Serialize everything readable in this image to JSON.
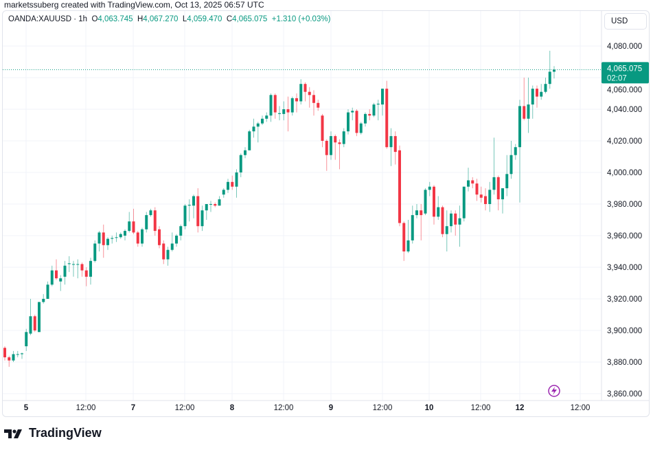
{
  "attribution": "marketssuberg created with TradingView.com, Oct 13, 2025 06:57 UTC",
  "legend": {
    "symbol": "OANDA:XAUUSD · 1h",
    "o_label": "O",
    "o": "4,063.745",
    "h_label": "H",
    "h": "4,067.270",
    "l_label": "L",
    "l": "4,059.470",
    "c_label": "C",
    "c": "4,065.075",
    "change": "+1.310 (+0.03%)"
  },
  "currency": "USD",
  "current_price": {
    "value": "4,065.075",
    "countdown": "02:07"
  },
  "brand": "TradingView",
  "colors": {
    "up": "#089981",
    "down": "#F23645",
    "grid": "#f0f3fa",
    "accent": "#9c27b0"
  },
  "chart_data": {
    "type": "candlestick",
    "title": "OANDA:XAUUSD · 1h",
    "ylim": [
      3850,
      4090
    ],
    "y_ticks": [
      "4,080.000",
      "4,060.000",
      "4,040.000",
      "4,020.000",
      "4,000.000",
      "3,980.000",
      "3,960.000",
      "3,940.000",
      "3,920.000",
      "3,900.000",
      "3,880.000",
      "3,860.000"
    ],
    "y_tick_values": [
      4080,
      4060,
      4040,
      4020,
      4000,
      3980,
      3960,
      3940,
      3920,
      3900,
      3880,
      3860
    ],
    "x_ticks": [
      "5",
      "12:00",
      "7",
      "12:00",
      "8",
      "12:00",
      "9",
      "12:00",
      "10",
      "12:00",
      "12",
      "12:00"
    ],
    "grid": true,
    "last_price": 4065.075,
    "ohlc": [
      [
        3889,
        3890,
        3881,
        3883
      ],
      [
        3883,
        3884,
        3877,
        3881
      ],
      [
        3881,
        3887,
        3880,
        3885
      ],
      [
        3885,
        3887,
        3883,
        3885
      ],
      [
        3885,
        3886,
        3882,
        3885.5
      ],
      [
        3890,
        3901,
        3887,
        3899
      ],
      [
        3898,
        3920,
        3897,
        3909
      ],
      [
        3909,
        3910,
        3899,
        3900
      ],
      [
        3899,
        3918,
        3899,
        3918
      ],
      [
        3918,
        3923,
        3917,
        3920
      ],
      [
        3920,
        3931,
        3920,
        3929
      ],
      [
        3929,
        3941,
        3928,
        3938
      ],
      [
        3938,
        3945,
        3932,
        3933
      ],
      [
        3931,
        3935,
        3925,
        3933
      ],
      [
        3934,
        3944,
        3929,
        3941
      ],
      [
        3942,
        3947,
        3937,
        3942.5
      ],
      [
        3942,
        3944,
        3934,
        3942
      ],
      [
        3942,
        3945,
        3933,
        3942
      ],
      [
        3942,
        3943,
        3934,
        3938
      ],
      [
        3938,
        3940,
        3928,
        3934
      ],
      [
        3934,
        3946,
        3929,
        3944
      ],
      [
        3944,
        3957,
        3943,
        3955
      ],
      [
        3955,
        3963,
        3950,
        3962
      ],
      [
        3962,
        3967,
        3946,
        3954
      ],
      [
        3954,
        3959,
        3951,
        3958
      ],
      [
        3958,
        3960,
        3955,
        3958.5
      ],
      [
        3959,
        3962,
        3956,
        3959
      ],
      [
        3959,
        3962,
        3958,
        3961
      ],
      [
        3960,
        3964,
        3957,
        3963
      ],
      [
        3963,
        3975,
        3962,
        3969
      ],
      [
        3969,
        3977,
        3961,
        3962
      ],
      [
        3962,
        3963,
        3953,
        3955
      ],
      [
        3955,
        3965,
        3953,
        3964
      ],
      [
        3964,
        3975,
        3962,
        3973
      ],
      [
        3973,
        3977,
        3972,
        3976
      ],
      [
        3976,
        3978,
        3960,
        3963
      ],
      [
        3964,
        3966,
        3952,
        3954
      ],
      [
        3955,
        3957,
        3942,
        3945
      ],
      [
        3945,
        3953,
        3941,
        3951
      ],
      [
        3951,
        3962,
        3950,
        3955
      ],
      [
        3955,
        3961,
        3953,
        3960
      ],
      [
        3960,
        3967,
        3957,
        3966
      ],
      [
        3966,
        3980,
        3964,
        3979
      ],
      [
        3979,
        3983,
        3969,
        3979.5
      ],
      [
        3979,
        3986,
        3971,
        3985
      ],
      [
        3985,
        3990,
        3962,
        3966
      ],
      [
        3966,
        3979,
        3963,
        3976
      ],
      [
        3976,
        3980,
        3970,
        3980
      ],
      [
        3980,
        3982,
        3975,
        3980
      ],
      [
        3980,
        3981,
        3978,
        3979
      ],
      [
        3979,
        3985,
        3979,
        3983
      ],
      [
        3986,
        3990,
        3984,
        3989
      ],
      [
        3989,
        3996,
        3987,
        3994
      ],
      [
        3994,
        3998,
        3989,
        3991
      ],
      [
        3991,
        4002,
        3984,
        4000
      ],
      [
        4000,
        4012,
        3997,
        4011
      ],
      [
        4011,
        4016,
        4009,
        4014
      ],
      [
        4014,
        4027,
        4014,
        4026
      ],
      [
        4026,
        4034,
        4022,
        4029
      ],
      [
        4029,
        4032,
        4019,
        4031
      ],
      [
        4031,
        4036,
        4030,
        4034
      ],
      [
        4034,
        4038,
        4032,
        4036
      ],
      [
        4036,
        4050,
        4032,
        4049
      ],
      [
        4049,
        4050,
        4034,
        4038
      ],
      [
        4037,
        4042,
        4033,
        4037.5
      ],
      [
        4037,
        4045,
        4033,
        4040
      ],
      [
        4040,
        4048,
        4026,
        4038
      ],
      [
        4038,
        4048,
        4036,
        4047
      ],
      [
        4047,
        4050,
        4038,
        4045
      ],
      [
        4045,
        4059,
        4043,
        4056
      ],
      [
        4056,
        4057,
        4045,
        4051
      ],
      [
        4051,
        4054,
        4041,
        4049
      ],
      [
        4049,
        4052,
        4036,
        4044
      ],
      [
        4044,
        4046,
        4039,
        4041
      ],
      [
        4036,
        4037,
        4016,
        4020
      ],
      [
        4020,
        4021,
        4001,
        4011
      ],
      [
        4011,
        4026,
        4008,
        4023
      ],
      [
        4023,
        4024,
        4008,
        4019
      ],
      [
        4019,
        4021,
        4002,
        4018
      ],
      [
        4018,
        4028,
        4016,
        4026
      ],
      [
        4026,
        4040,
        4024,
        4038
      ],
      [
        4038,
        4041,
        4033,
        4039
      ],
      [
        4039,
        4040,
        4023,
        4025
      ],
      [
        4025,
        4032,
        4024,
        4031
      ],
      [
        4031,
        4038,
        4029,
        4037
      ],
      [
        4037,
        4040,
        4033,
        4036
      ],
      [
        4036,
        4044,
        4035,
        4043
      ],
      [
        4043,
        4046,
        4033,
        4043.5
      ],
      [
        4043,
        4053,
        4036,
        4053
      ],
      [
        4053,
        4058,
        4015,
        4016
      ],
      [
        4016,
        4028,
        4004,
        4023
      ],
      [
        4023,
        4026,
        4005,
        4013
      ],
      [
        4014,
        4017,
        3966,
        3968
      ],
      [
        3968,
        3969,
        3944,
        3950
      ],
      [
        3950,
        3970,
        3949,
        3957
      ],
      [
        3957,
        3979,
        3955,
        3973
      ],
      [
        3973,
        3980,
        3971,
        3976
      ],
      [
        3976,
        3980,
        3957,
        3973
      ],
      [
        3974,
        3990,
        3973,
        3989
      ],
      [
        3989,
        3994,
        3985,
        3991
      ],
      [
        3991,
        3992,
        3967,
        3972
      ],
      [
        3972,
        3985,
        3970,
        3978
      ],
      [
        3978,
        3979,
        3959,
        3961
      ],
      [
        3961,
        3976,
        3950,
        3966
      ],
      [
        3966,
        3976,
        3962,
        3974
      ],
      [
        3974,
        3976,
        3960,
        3967
      ],
      [
        3967,
        3979,
        3953,
        3971
      ],
      [
        3971,
        3991,
        3969,
        3991
      ],
      [
        3991,
        4003,
        3988,
        3995
      ],
      [
        3995,
        3997,
        3990,
        3993
      ],
      [
        3993,
        3996,
        3982,
        3986
      ],
      [
        3986,
        3991,
        3981,
        3984
      ],
      [
        3985,
        3990,
        3976,
        3980
      ],
      [
        3980,
        3994,
        3975,
        3989
      ],
      [
        3989,
        4022,
        3986,
        3997
      ],
      [
        3997,
        3998,
        3976,
        3983
      ],
      [
        3983,
        3990,
        3974,
        3990
      ],
      [
        3990,
        4011,
        3985,
        3999
      ],
      [
        3999,
        4020,
        3996,
        4011
      ],
      [
        4011,
        4018,
        4008,
        4016
      ],
      [
        4016,
        4046,
        3981,
        4042
      ],
      [
        4042,
        4060,
        4033,
        4034
      ],
      [
        4034,
        4060,
        4025,
        4043
      ],
      [
        4043,
        4055,
        4034,
        4053
      ],
      [
        4053,
        4055,
        4041,
        4048
      ],
      [
        4048,
        4056,
        4046,
        4051
      ],
      [
        4051,
        4060,
        4050,
        4056
      ],
      [
        4056,
        4077,
        4053,
        4063.745
      ],
      [
        4063.745,
        4067.27,
        4059.47,
        4065.075
      ]
    ]
  }
}
